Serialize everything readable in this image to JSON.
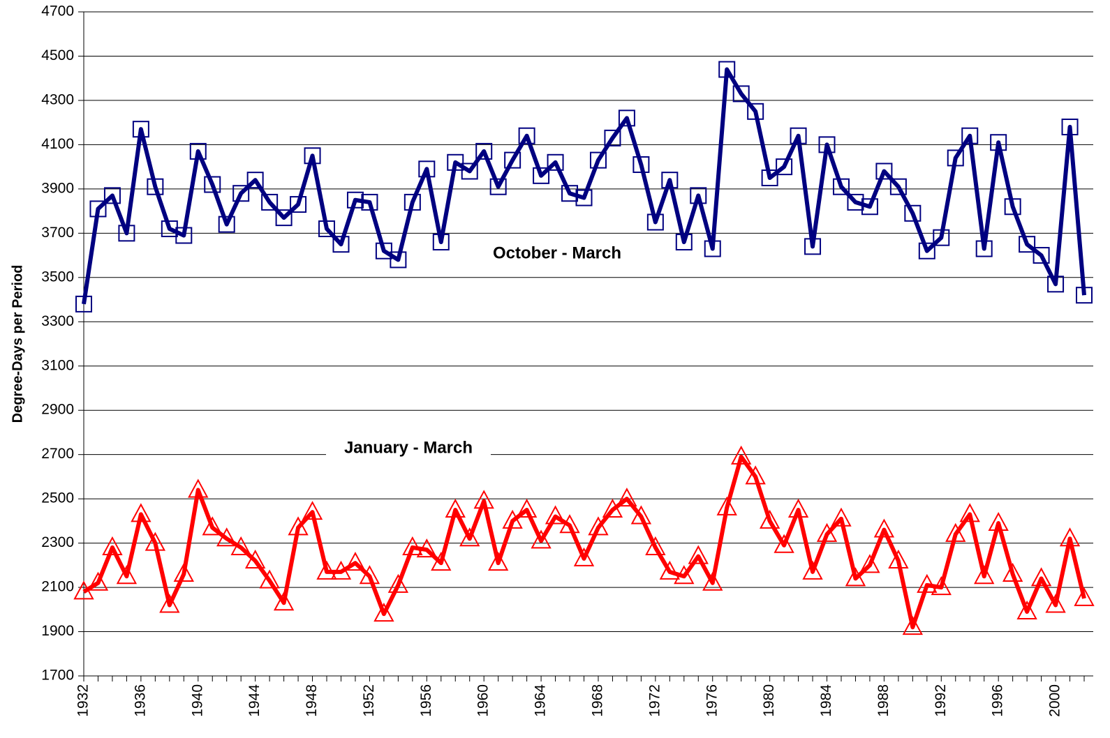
{
  "chart_data": {
    "type": "line",
    "y_label": "Degree-Days per Period",
    "x": [
      1932,
      1933,
      1934,
      1935,
      1936,
      1937,
      1938,
      1939,
      1940,
      1941,
      1942,
      1943,
      1944,
      1945,
      1946,
      1947,
      1948,
      1949,
      1950,
      1951,
      1952,
      1953,
      1954,
      1955,
      1956,
      1957,
      1958,
      1959,
      1960,
      1961,
      1962,
      1963,
      1964,
      1965,
      1966,
      1967,
      1968,
      1969,
      1970,
      1971,
      1972,
      1973,
      1974,
      1975,
      1976,
      1977,
      1978,
      1979,
      1980,
      1981,
      1982,
      1983,
      1984,
      1985,
      1986,
      1987,
      1988,
      1989,
      1990,
      1991,
      1992,
      1993,
      1994,
      1995,
      1996,
      1997,
      1998,
      1999,
      2000,
      2001,
      2002
    ],
    "series": [
      {
        "name": "October - March",
        "color": "#000080",
        "marker": "square",
        "values": [
          3380,
          3810,
          3870,
          3700,
          4170,
          3910,
          3720,
          3690,
          4070,
          3920,
          3740,
          3880,
          3940,
          3840,
          3770,
          3830,
          4050,
          3720,
          3650,
          3850,
          3840,
          3620,
          3580,
          3840,
          3990,
          3660,
          4020,
          3980,
          4070,
          3910,
          4030,
          4140,
          3960,
          4020,
          3880,
          3860,
          4030,
          4130,
          4220,
          4010,
          3750,
          3940,
          3660,
          3870,
          3630,
          4440,
          4330,
          4250,
          3950,
          4000,
          4140,
          3640,
          4100,
          3910,
          3840,
          3820,
          3980,
          3910,
          3790,
          3620,
          3680,
          4040,
          4140,
          3630,
          4110,
          3820,
          3650,
          3600,
          3470,
          4180,
          3420
        ]
      },
      {
        "name": "January - March",
        "color": "#ff0000",
        "marker": "triangle",
        "values": [
          2080,
          2120,
          2280,
          2150,
          2430,
          2300,
          2020,
          2160,
          2540,
          2370,
          2320,
          2280,
          2220,
          2130,
          2030,
          2370,
          2440,
          2170,
          2170,
          2210,
          2150,
          1980,
          2110,
          2280,
          2270,
          2210,
          2450,
          2320,
          2490,
          2210,
          2400,
          2450,
          2310,
          2420,
          2380,
          2230,
          2370,
          2450,
          2500,
          2420,
          2280,
          2170,
          2150,
          2240,
          2120,
          2460,
          2690,
          2600,
          2400,
          2290,
          2450,
          2170,
          2340,
          2410,
          2140,
          2200,
          2360,
          2220,
          1920,
          2110,
          2100,
          2340,
          2430,
          2150,
          2390,
          2160,
          1990,
          2140,
          2020,
          2320,
          2050
        ]
      }
    ],
    "xlim": [
      1932,
      2002
    ],
    "xticks": [
      1932,
      1936,
      1940,
      1944,
      1948,
      1952,
      1956,
      1960,
      1964,
      1968,
      1972,
      1976,
      1980,
      1984,
      1988,
      1992,
      1996,
      2000
    ],
    "ylim": [
      1700,
      4700
    ],
    "yticks": [
      1700,
      1900,
      2100,
      2300,
      2500,
      2700,
      2900,
      3100,
      3300,
      3500,
      3700,
      3900,
      4100,
      4300,
      4500,
      4700
    ],
    "grid": true
  }
}
